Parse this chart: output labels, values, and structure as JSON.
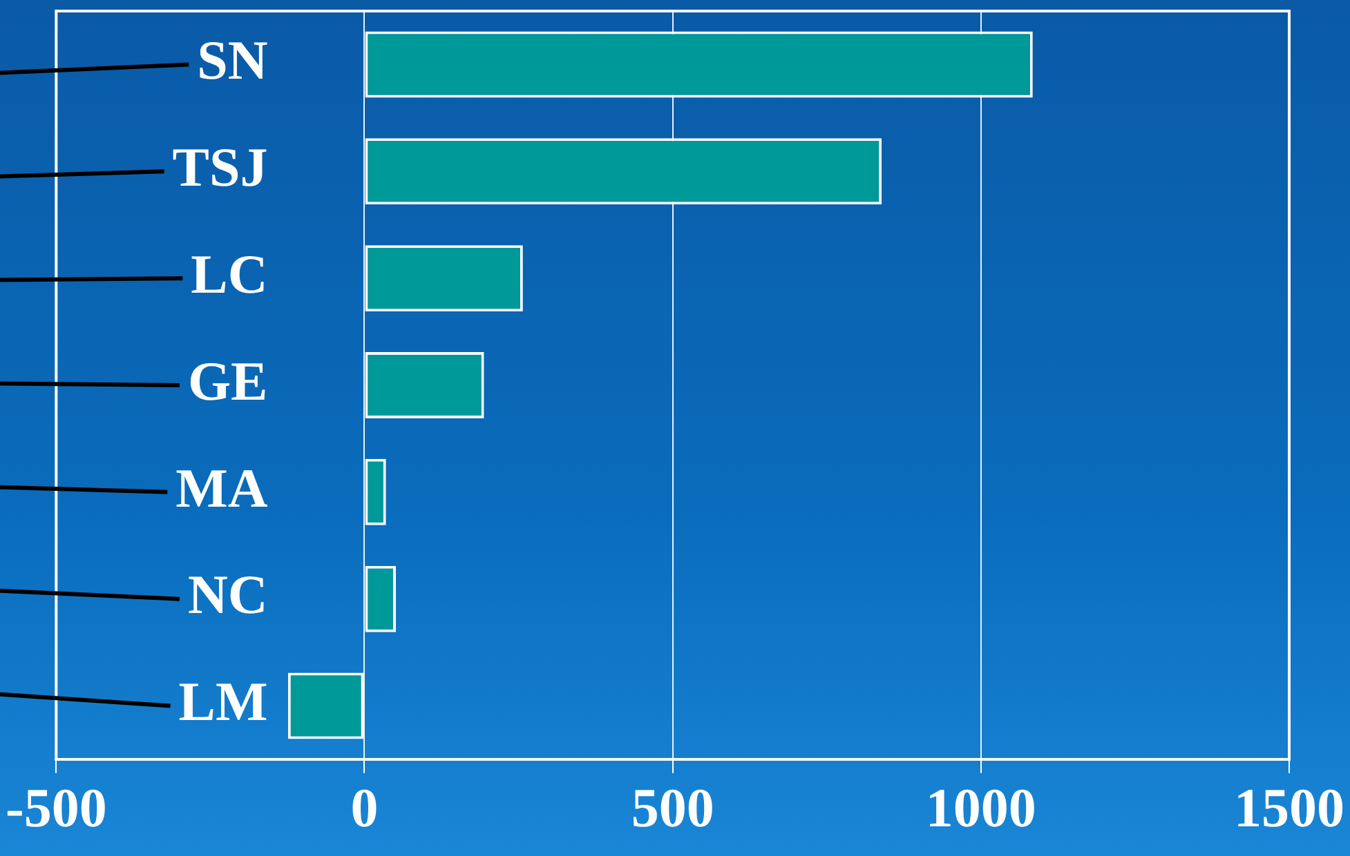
{
  "chart_data": {
    "type": "bar",
    "orientation": "horizontal",
    "categories": [
      "SN",
      "TSJ",
      "LC",
      "GE",
      "MA",
      "NC",
      "LM"
    ],
    "values": [
      1084,
      839,
      257,
      194,
      35,
      51,
      -124
    ],
    "color": "#009999",
    "xlim": [
      -500,
      1500
    ],
    "xticks": [
      -500,
      0,
      500,
      1000,
      1500
    ],
    "grid": "x",
    "legend": false
  }
}
